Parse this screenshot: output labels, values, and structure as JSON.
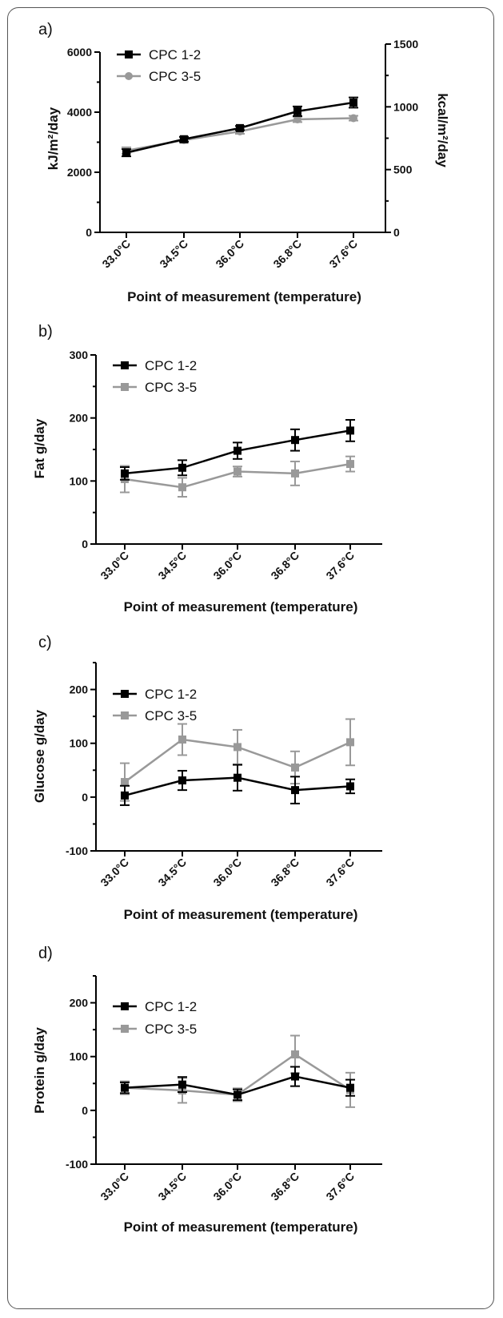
{
  "figure": {
    "series_colors": {
      "CPC 1-2": "#000000",
      "CPC 3-5": "#999999"
    }
  },
  "chart_data": [
    {
      "panel": "a)",
      "type": "line",
      "categories": [
        "33.0°C",
        "34.5°C",
        "36.0°C",
        "36.8°C",
        "37.6°C"
      ],
      "xlabel": "Point of measurement  (temperature)",
      "ylabel": "kJ/m²/day",
      "ylim": [
        0,
        6000
      ],
      "yticks": [
        0,
        2000,
        4000,
        6000
      ],
      "ylabel_right": "kcal/m²/day",
      "ylim_right": [
        0,
        1500
      ],
      "yticks_right": [
        0,
        500,
        1000,
        1500
      ],
      "legend_position": "top-left",
      "series": [
        {
          "name": "CPC 1-2",
          "marker": "square",
          "values": [
            2650,
            3100,
            3470,
            4030,
            4320
          ],
          "errors": [
            120,
            80,
            70,
            160,
            170
          ]
        },
        {
          "name": "CPC 3-5",
          "marker": "circle",
          "values": [
            2720,
            3070,
            3360,
            3760,
            3800
          ],
          "errors": [
            110,
            90,
            80,
            90,
            80
          ]
        }
      ]
    },
    {
      "panel": "b)",
      "type": "line",
      "categories": [
        "33.0°C",
        "34.5°C",
        "36.0°C",
        "36.8°C",
        "37.6°C"
      ],
      "xlabel": "Point of measurement  (temperature)",
      "ylabel": "Fat g/day",
      "ylim": [
        0,
        300
      ],
      "yticks": [
        0,
        100,
        200,
        300
      ],
      "legend_position": "top-left",
      "series": [
        {
          "name": "CPC 1-2",
          "marker": "square",
          "values": [
            112,
            121,
            148,
            165,
            180
          ],
          "errors": [
            10,
            12,
            13,
            17,
            17
          ]
        },
        {
          "name": "CPC 3-5",
          "marker": "square",
          "values": [
            103,
            90,
            115,
            112,
            127
          ],
          "errors": [
            21,
            15,
            8,
            19,
            12
          ]
        }
      ]
    },
    {
      "panel": "c)",
      "type": "line",
      "categories": [
        "33.0°C",
        "34.5°C",
        "36.0°C",
        "36.8°C",
        "37.6°C"
      ],
      "xlabel": "Point of measurement  (temperature)",
      "ylabel": "Glucose g/day",
      "ylim": [
        -100,
        250
      ],
      "yticks": [
        -100,
        0,
        100,
        200
      ],
      "legend_position": "top-left",
      "series": [
        {
          "name": "CPC 1-2",
          "marker": "square",
          "values": [
            3,
            31,
            36,
            13,
            20
          ],
          "errors": [
            18,
            18,
            24,
            25,
            13
          ]
        },
        {
          "name": "CPC 3-5",
          "marker": "square",
          "values": [
            28,
            107,
            93,
            55,
            102
          ],
          "errors": [
            35,
            29,
            32,
            30,
            43
          ]
        }
      ]
    },
    {
      "panel": "d)",
      "type": "line",
      "categories": [
        "33.0°C",
        "34.5°C",
        "36.0°C",
        "36.8°C",
        "37.6°C"
      ],
      "xlabel": "Point of measurement  (temperature)",
      "ylabel": "Protein g/day",
      "ylim": [
        -100,
        250
      ],
      "yticks": [
        -100,
        0,
        100,
        200
      ],
      "legend_position": "top-left",
      "series": [
        {
          "name": "CPC 1-2",
          "marker": "square",
          "values": [
            42,
            48,
            29,
            63,
            42
          ],
          "errors": [
            10,
            14,
            10,
            18,
            15
          ]
        },
        {
          "name": "CPC 3-5",
          "marker": "square",
          "values": [
            42,
            37,
            29,
            104,
            38
          ],
          "errors": [
            12,
            23,
            12,
            35,
            32
          ]
        }
      ]
    }
  ]
}
